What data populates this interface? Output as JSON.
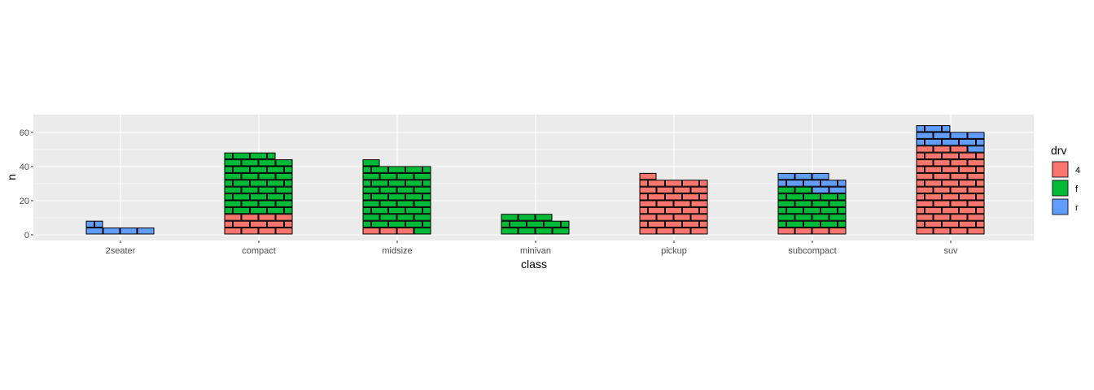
{
  "chart_data": {
    "type": "bar",
    "style": "waffle brick stacks (one brick per observation)",
    "xlabel": "class",
    "ylabel": "n",
    "categories": [
      "2seater",
      "compact",
      "midsize",
      "minivan",
      "pickup",
      "subcompact",
      "suv"
    ],
    "y_ticks": [
      0,
      20,
      40,
      60
    ],
    "ylim": [
      -3,
      67
    ],
    "grid": true,
    "legend": {
      "title": "drv",
      "position": "right"
    },
    "series": [
      {
        "name": "4",
        "color": "#F8766D",
        "values": [
          0,
          12,
          3,
          0,
          33,
          4,
          51
        ]
      },
      {
        "name": "f",
        "color": "#00BA38",
        "values": [
          0,
          35,
          38,
          11,
          0,
          22,
          0
        ]
      },
      {
        "name": "r",
        "color": "#619CFF",
        "values": [
          5,
          0,
          0,
          0,
          0,
          9,
          11
        ]
      }
    ]
  }
}
